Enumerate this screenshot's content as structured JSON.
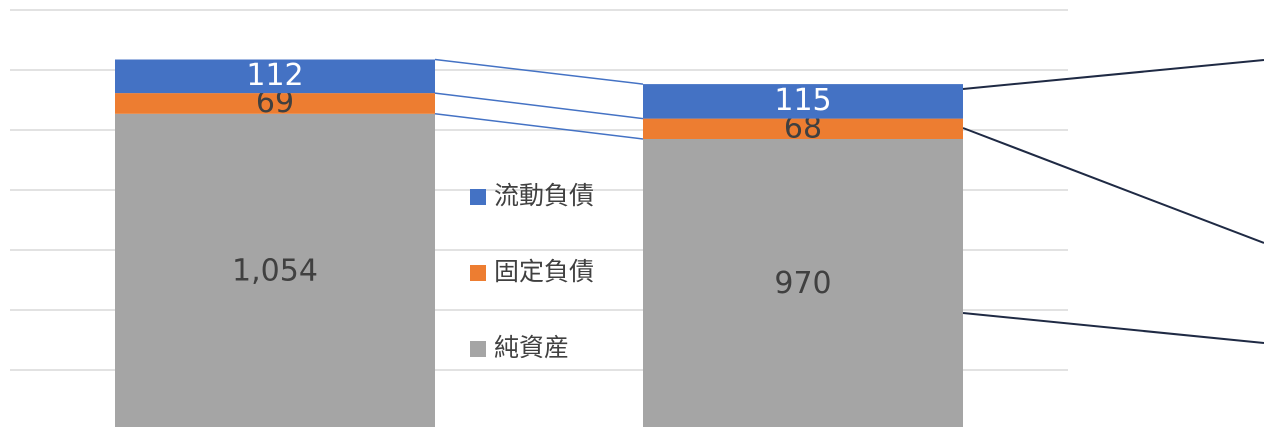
{
  "chart_data": {
    "type": "stacked_bar",
    "categories": [
      null,
      null
    ],
    "series": [
      {
        "name": "純資産",
        "color": "#a5a5a5",
        "label_color": "#404040",
        "values": [
          1054,
          970
        ]
      },
      {
        "name": "固定負債",
        "color": "#ed7d31",
        "label_color": "#404040",
        "values": [
          69,
          68
        ]
      },
      {
        "name": "流動負債",
        "color": "#4472c4",
        "label_color": "#ffffff",
        "values": [
          112,
          115
        ]
      }
    ],
    "value_labels": [
      [
        "1,054",
        "970"
      ],
      [
        "69",
        "68"
      ],
      [
        "112",
        "115"
      ]
    ],
    "ylim": [
      0,
      1400
    ],
    "yticks": [
      200,
      400,
      600,
      800,
      1000,
      1200,
      1400
    ],
    "grid": true,
    "legend": "center"
  }
}
